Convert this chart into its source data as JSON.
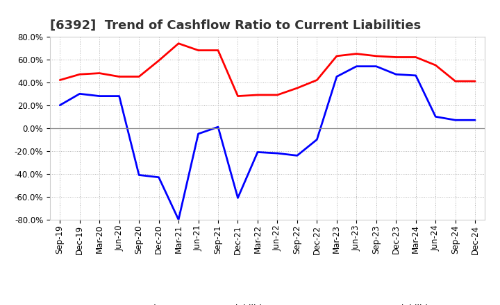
{
  "title": "[6392]  Trend of Cashflow Ratio to Current Liabilities",
  "x_labels": [
    "Sep-19",
    "Dec-19",
    "Mar-20",
    "Jun-20",
    "Sep-20",
    "Dec-20",
    "Mar-21",
    "Jun-21",
    "Sep-21",
    "Dec-21",
    "Mar-22",
    "Jun-22",
    "Sep-22",
    "Dec-22",
    "Mar-23",
    "Jun-23",
    "Sep-23",
    "Dec-23",
    "Mar-24",
    "Jun-24",
    "Sep-24",
    "Dec-24"
  ],
  "operating_cf": [
    42,
    47,
    48,
    45,
    45,
    59,
    74,
    68,
    68,
    28,
    29,
    29,
    35,
    42,
    63,
    65,
    63,
    62,
    62,
    55,
    41,
    41
  ],
  "free_cf": [
    20,
    30,
    28,
    28,
    -41,
    -43,
    -80,
    -5,
    1,
    -61,
    -21,
    -22,
    -24,
    -10,
    45,
    54,
    54,
    47,
    46,
    10,
    7,
    7
  ],
  "operating_cf_color": "#ff0000",
  "free_cf_color": "#0000ff",
  "ylim": [
    -80.0,
    80.0
  ],
  "yticks": [
    -80.0,
    -60.0,
    -40.0,
    -20.0,
    0.0,
    20.0,
    40.0,
    60.0,
    80.0
  ],
  "background_color": "#ffffff",
  "plot_bg_color": "#ffffff",
  "grid_color": "#aaaaaa",
  "zero_line_color": "#888888",
  "legend_labels": [
    "Operating CF to Current Liabilities",
    "Free CF to Current Liabilities"
  ],
  "title_fontsize": 13,
  "tick_fontsize": 8.5,
  "legend_fontsize": 9,
  "line_width": 2.0
}
